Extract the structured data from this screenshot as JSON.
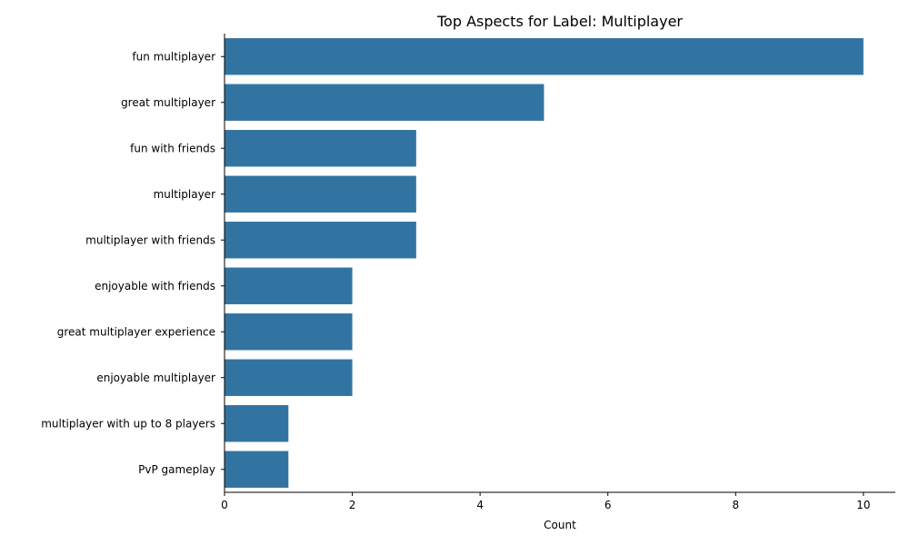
{
  "chart_data": {
    "type": "bar",
    "orientation": "horizontal",
    "title": "Top Aspects for Label: Multiplayer",
    "xlabel": "Count",
    "ylabel": "",
    "categories": [
      "fun multiplayer",
      "great multiplayer",
      "fun with friends",
      "multiplayer",
      "multiplayer with friends",
      "enjoyable with friends",
      "great multiplayer experience",
      "enjoyable multiplayer",
      "multiplayer with up to 8 players",
      "PvP gameplay"
    ],
    "values": [
      10,
      5,
      3,
      3,
      3,
      2,
      2,
      2,
      1,
      1
    ],
    "xlim": [
      0,
      10.5
    ],
    "xticks": [
      "0",
      "2",
      "4",
      "6",
      "8",
      "10"
    ],
    "grid": false,
    "bar_color": "#3274a1"
  }
}
